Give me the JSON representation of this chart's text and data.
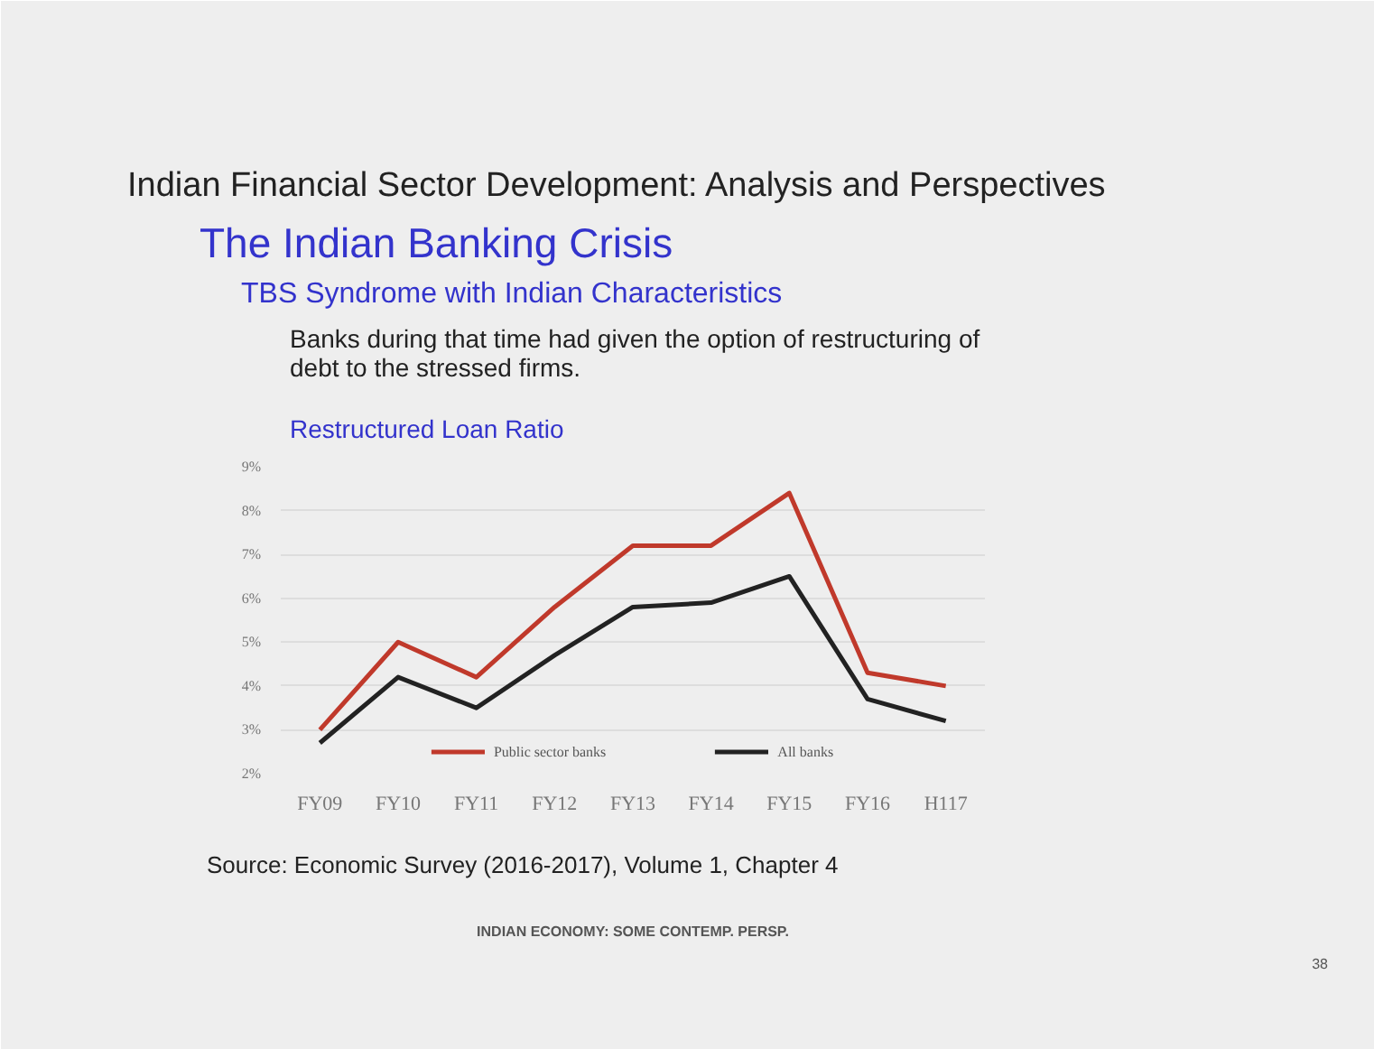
{
  "chart_data": {
    "type": "line",
    "title": "Indian Financial Sector Development: Analysis and Perspectives",
    "subtitle": "The Indian Banking Crisis",
    "annotations": [
      "TBS Syndrome with Indian Characteristics",
      "Banks during that time had given the option of restructuring of debt to the stressed firms.",
      "Restructured Loan Ratio",
      "Source: Economic Survey (2016-2017), Volume 1, Chapter 4",
      "INDIAN ECONOMY: SOME CONTEMP. PERSP.",
      "38"
    ],
    "categories": [
      "FY09",
      "FY10",
      "FY11",
      "FY12",
      "FY13",
      "FY14",
      "FY15",
      "FY16",
      "H117"
    ],
    "series": [
      {
        "name": "Public sector banks",
        "color": "#c0392b",
        "values": [
          3.0,
          5.0,
          4.2,
          5.8,
          7.2,
          7.2,
          8.4,
          4.3,
          4.0
        ]
      },
      {
        "name": "All banks",
        "color": "#222222",
        "values": [
          2.7,
          4.2,
          3.5,
          4.7,
          5.8,
          5.9,
          6.5,
          3.7,
          3.2
        ]
      }
    ],
    "ylim": [
      2,
      9
    ],
    "yticks": [
      {
        "value": 2,
        "label": "2%"
      },
      {
        "value": 3,
        "label": "3%"
      },
      {
        "value": 4,
        "label": "4%"
      },
      {
        "value": 5,
        "label": "5%"
      },
      {
        "value": 6,
        "label": "6%"
      },
      {
        "value": 7,
        "label": "7%"
      },
      {
        "value": 8,
        "label": "8%"
      },
      {
        "value": 9,
        "label": "9%"
      }
    ],
    "grid": "y",
    "legend": "bottom",
    "marker": "none",
    "line_style": "solid"
  }
}
